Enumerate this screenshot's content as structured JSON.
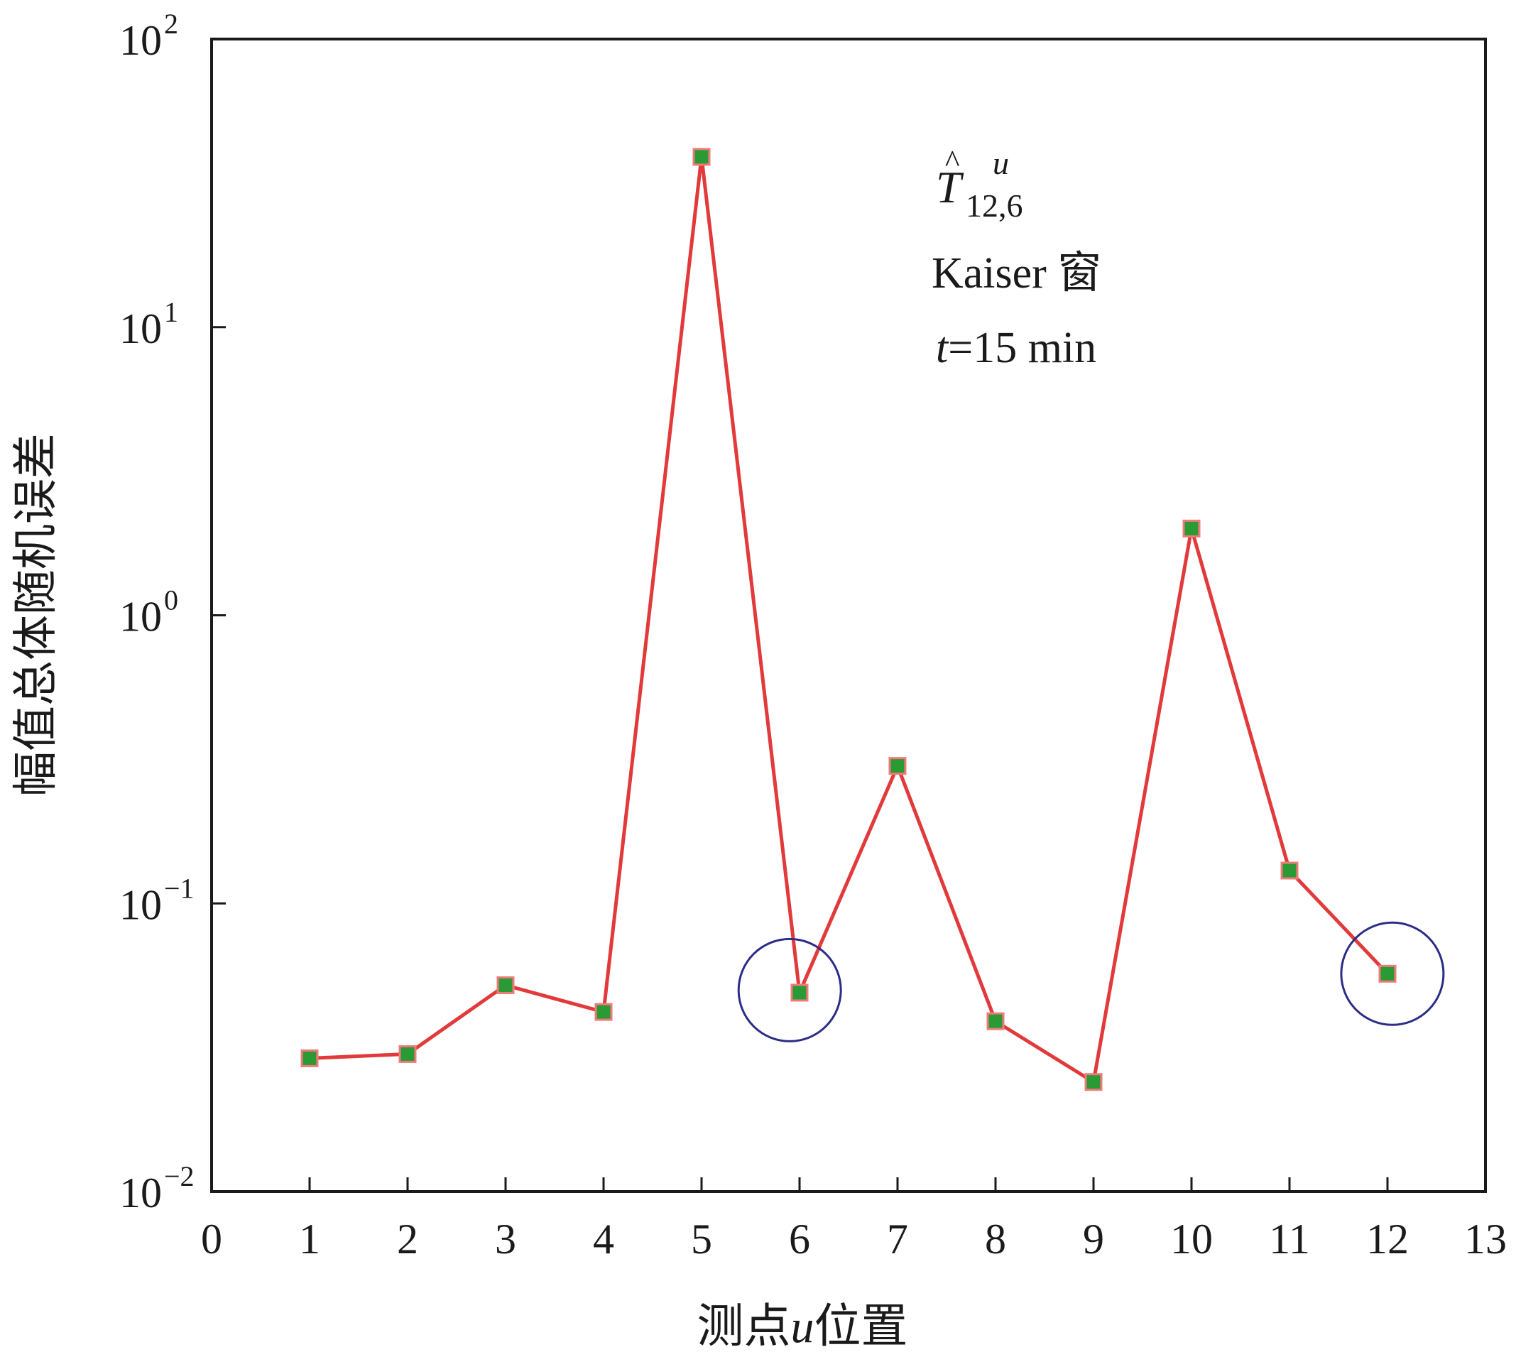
{
  "chart_data": {
    "type": "line",
    "xlabel_parts": [
      "测点",
      "u",
      "位置"
    ],
    "ylabel": "幅值总体随机误差",
    "x_ticks": [
      0,
      1,
      2,
      3,
      4,
      5,
      6,
      7,
      8,
      9,
      10,
      11,
      12,
      13
    ],
    "xlim": [
      0,
      13
    ],
    "y_scale": "log",
    "ylim": [
      0.01,
      100
    ],
    "y_tick_values": [
      0.01,
      0.1,
      1,
      10,
      100
    ],
    "y_ticks": [
      {
        "base": "10",
        "exp": "−2"
      },
      {
        "base": "10",
        "exp": "−1"
      },
      {
        "base": "10",
        "exp": "0"
      },
      {
        "base": "10",
        "exp": "1"
      },
      {
        "base": "10",
        "exp": "2"
      }
    ],
    "series": [
      {
        "x": [
          1,
          2,
          3,
          4,
          5,
          6,
          7,
          8,
          9,
          10,
          11,
          12
        ],
        "values": [
          0.029,
          0.03,
          0.052,
          0.042,
          39.0,
          0.049,
          0.3,
          0.039,
          0.024,
          2.0,
          0.13,
          0.057
        ],
        "line_color": "#e23a3a",
        "marker_color": "#2a9a35"
      }
    ],
    "highlight_circles": [
      {
        "x": 5.9,
        "y": 0.05
      },
      {
        "x": 12.05,
        "y": 0.057
      }
    ],
    "circle_color": "#2b2d86",
    "annotation": {
      "symbol": "T",
      "hat": "^",
      "superscript": "u",
      "subscript": "12,6",
      "window_line": "Kaiser 窗",
      "time_var": "t",
      "time_value": "=15 min"
    },
    "grid": false,
    "legend": "none"
  }
}
